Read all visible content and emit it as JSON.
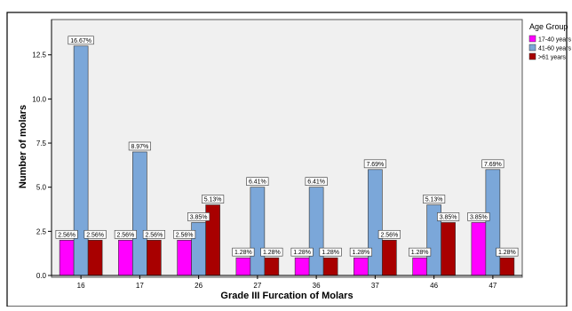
{
  "chart_data": {
    "type": "bar",
    "xlabel": "Grade III Furcation of Molars",
    "ylabel": "Number of molars",
    "categories": [
      "16",
      "17",
      "26",
      "27",
      "36",
      "37",
      "46",
      "47"
    ],
    "ylim": [
      0,
      14.5
    ],
    "yticks": [
      "0.0",
      "2.5",
      "5.0",
      "7.5",
      "10.0",
      "12.5"
    ],
    "ytick_values": [
      0,
      2.5,
      5,
      7.5,
      10,
      12.5
    ],
    "legend": {
      "title": "Age Group",
      "position": "top-right"
    },
    "series": [
      {
        "name": "17-40 years",
        "color": "#ff00ff",
        "values": [
          2,
          2,
          2,
          1,
          1,
          1,
          1,
          3
        ],
        "labels": [
          "2.56%",
          "2.56%",
          "2.56%",
          "1.28%",
          "1.28%",
          "1.28%",
          "1.28%",
          "3.85%"
        ]
      },
      {
        "name": "41-60 years",
        "color": "#7ba7d9",
        "values": [
          13,
          7,
          3,
          5,
          5,
          6,
          4,
          6
        ],
        "labels": [
          "16.67%",
          "8.97%",
          "3.85%",
          "6.41%",
          "6.41%",
          "7.69%",
          "5.13%",
          "7.69%"
        ]
      },
      {
        "name": ">61 years",
        "color": "#a80000",
        "values": [
          2,
          2,
          4,
          1,
          1,
          2,
          3,
          1
        ],
        "labels": [
          "2.56%",
          "2.56%",
          "5.13%",
          "1.28%",
          "1.28%",
          "2.56%",
          "3.85%",
          "1.28%"
        ]
      }
    ],
    "grid": false
  }
}
